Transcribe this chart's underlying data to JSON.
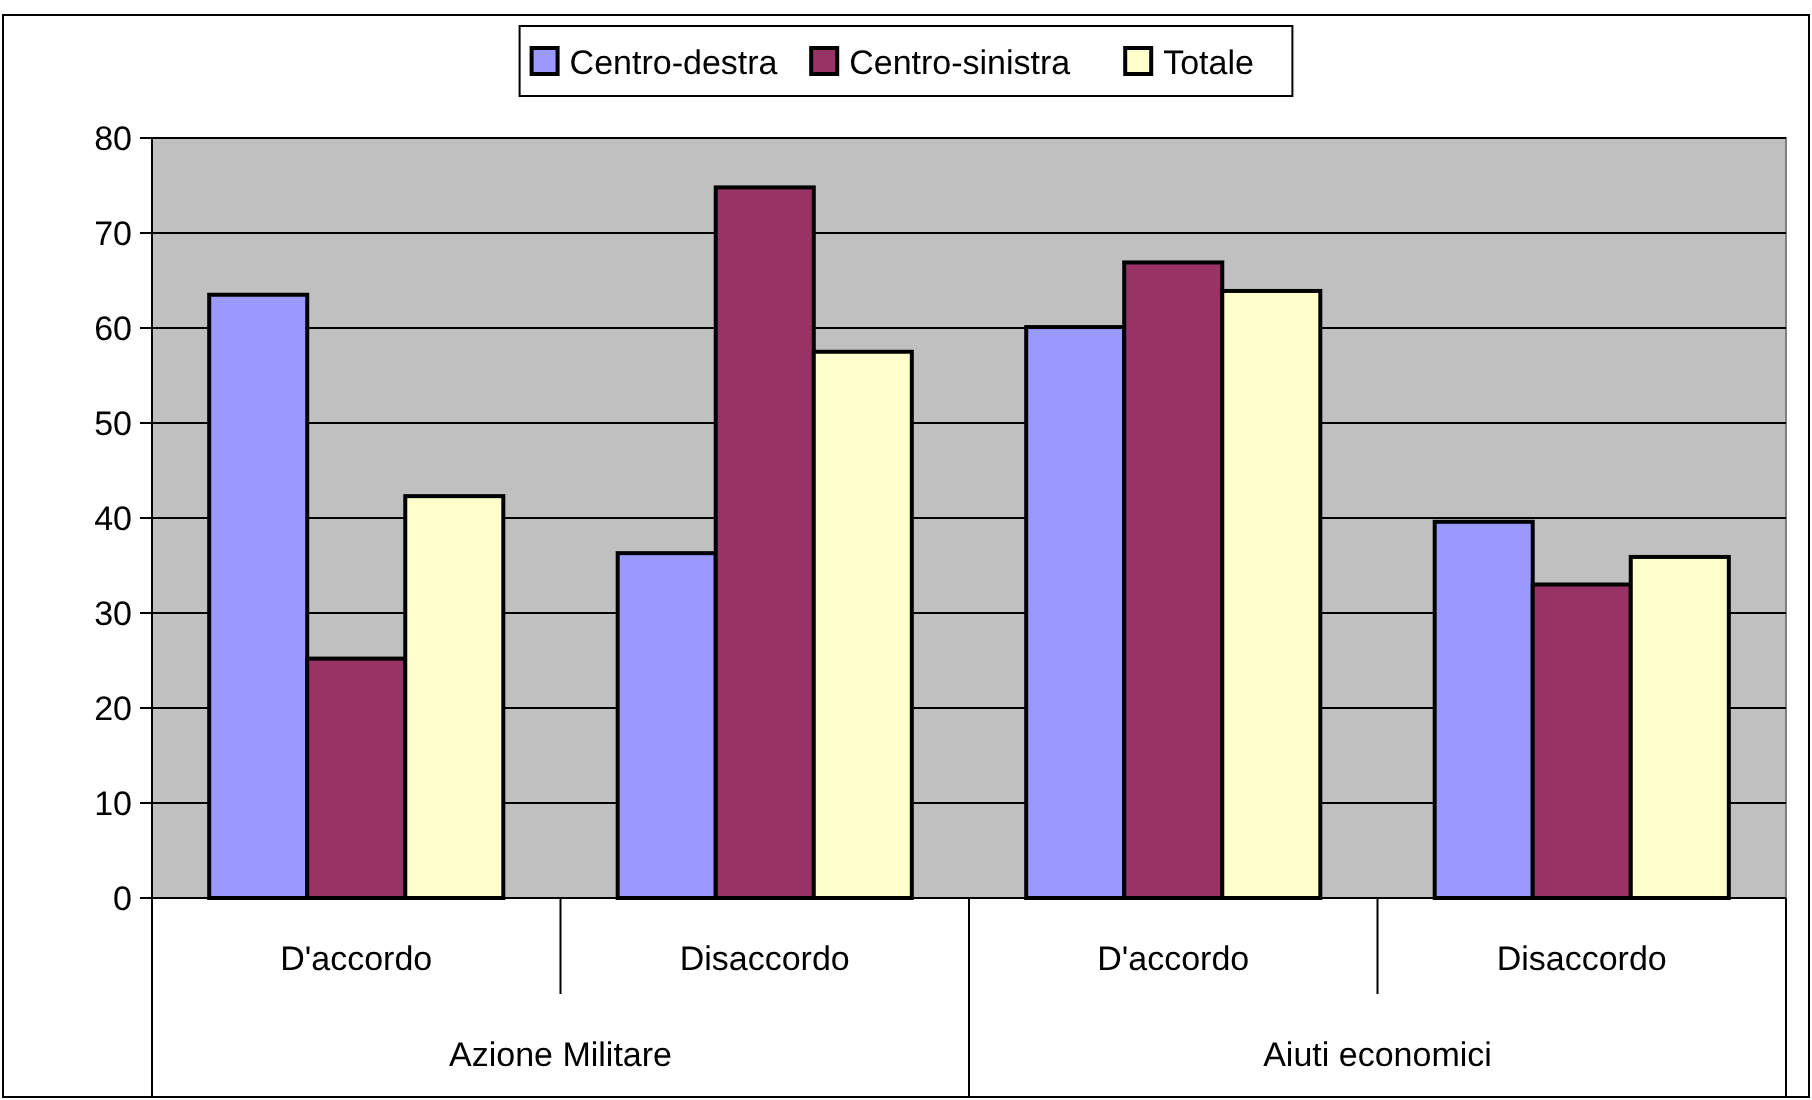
{
  "chart_data": {
    "type": "bar",
    "categories": [
      "D'accordo",
      "Disaccordo",
      "D'accordo",
      "Disaccordo"
    ],
    "annotations": [
      "Azione Militare",
      "Aiuti economici"
    ],
    "series": [
      {
        "name": "Centro-destra",
        "color": "#9999ff",
        "values": [
          63.5,
          36.3,
          60.1,
          39.6
        ]
      },
      {
        "name": "Centro-sinistra",
        "color": "#993366",
        "values": [
          25.2,
          74.8,
          66.9,
          33
        ]
      },
      {
        "name": "Totale",
        "color": "#ffffcc",
        "values": [
          42.3,
          57.5,
          63.9,
          35.9
        ]
      }
    ],
    "ylim": [
      0,
      80
    ],
    "yticks": [
      0,
      10,
      20,
      30,
      40,
      50,
      60,
      70,
      80
    ],
    "grid": "y",
    "legend": "top"
  }
}
